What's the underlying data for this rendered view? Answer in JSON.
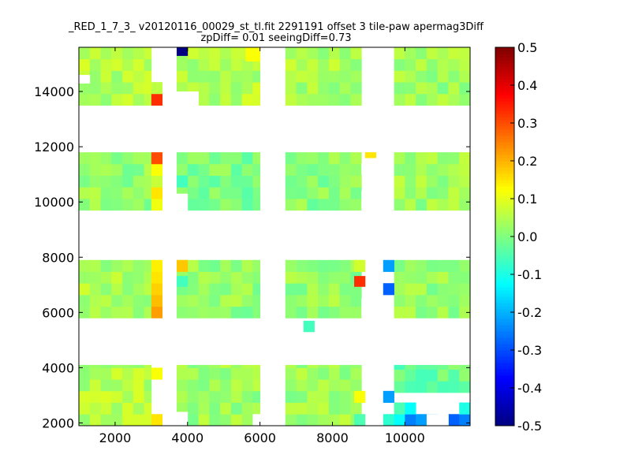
{
  "chart_data": {
    "type": "heatmap",
    "title": "_RED_1_7_3_ v20120116_00029_st_tl.fit 2291191 offset 3 tile-paw apermag3Diff",
    "subtitle": "zpDiff= 0.01 seeingDiff=0.73",
    "xlabel": "",
    "ylabel": "",
    "xlim": [
      1000,
      11800
    ],
    "ylim": [
      1900,
      15600
    ],
    "x_ticks": [
      2000,
      4000,
      6000,
      8000,
      10000
    ],
    "y_ticks": [
      2000,
      4000,
      6000,
      8000,
      10000,
      12000,
      14000
    ],
    "colorbar": {
      "colormap": "jet",
      "range": [
        -0.5,
        0.5
      ],
      "ticks": [
        "-0.5",
        "-0.4",
        "-0.3",
        "-0.2",
        "-0.1",
        "0.0",
        "0.1",
        "0.2",
        "0.3",
        "0.4",
        "0.5"
      ]
    },
    "cell_size": [
      300,
      420
    ],
    "blocks": [
      {
        "x": [
          1000,
          3000
        ],
        "y": [
          1900,
          4100
        ],
        "base": 0.05
      },
      {
        "x": [
          1000,
          3000
        ],
        "y": [
          5800,
          7900
        ],
        "base": 0.04
      },
      {
        "x": [
          1000,
          3000
        ],
        "y": [
          9700,
          11800
        ],
        "base": 0.02
      },
      {
        "x": [
          1000,
          3000
        ],
        "y": [
          13500,
          15600
        ],
        "base": 0.05
      },
      {
        "x": [
          3700,
          6000
        ],
        "y": [
          1900,
          4100
        ],
        "base": 0.03
      },
      {
        "x": [
          3700,
          6000
        ],
        "y": [
          5800,
          7900
        ],
        "base": 0.02
      },
      {
        "x": [
          3700,
          6000
        ],
        "y": [
          9700,
          11800
        ],
        "base": 0.0
      },
      {
        "x": [
          3700,
          6000
        ],
        "y": [
          13500,
          15600
        ],
        "base": 0.05
      },
      {
        "x": [
          6700,
          8800
        ],
        "y": [
          1900,
          4100
        ],
        "base": 0.03
      },
      {
        "x": [
          6700,
          8800
        ],
        "y": [
          5800,
          7900
        ],
        "base": 0.02
      },
      {
        "x": [
          6700,
          8800
        ],
        "y": [
          9700,
          11800
        ],
        "base": 0.01
      },
      {
        "x": [
          6700,
          8800
        ],
        "y": [
          13500,
          15600
        ],
        "base": 0.04
      },
      {
        "x": [
          9700,
          11800
        ],
        "y": [
          3100,
          4100
        ],
        "base": -0.02
      },
      {
        "x": [
          9700,
          11800
        ],
        "y": [
          5800,
          7900
        ],
        "base": 0.02
      },
      {
        "x": [
          9700,
          11800
        ],
        "y": [
          9700,
          11800
        ],
        "base": 0.03
      },
      {
        "x": [
          9700,
          11800
        ],
        "y": [
          13500,
          15600
        ],
        "base": 0.03
      }
    ],
    "column_cells": [
      {
        "x": [
          3000,
          3300
        ],
        "y": [
          1900,
          2320
        ],
        "value": 0.15
      },
      {
        "x": [
          3000,
          3300
        ],
        "y": [
          3580,
          4000
        ],
        "value": 0.12
      },
      {
        "x": [
          3000,
          3300
        ],
        "y": [
          5800,
          6220
        ],
        "value": 0.22
      },
      {
        "x": [
          3000,
          3300
        ],
        "y": [
          6220,
          6640
        ],
        "value": 0.19
      },
      {
        "x": [
          3000,
          3300
        ],
        "y": [
          6640,
          7060
        ],
        "value": 0.17
      },
      {
        "x": [
          3000,
          3300
        ],
        "y": [
          7060,
          7480
        ],
        "value": 0.15
      },
      {
        "x": [
          3000,
          3300
        ],
        "y": [
          7480,
          7900
        ],
        "value": 0.14
      },
      {
        "x": [
          3000,
          3300
        ],
        "y": [
          9700,
          10120
        ],
        "value": 0.11
      },
      {
        "x": [
          3000,
          3300
        ],
        "y": [
          10120,
          10540
        ],
        "value": 0.15
      },
      {
        "x": [
          3000,
          3300
        ],
        "y": [
          10540,
          10960
        ],
        "value": 0.07
      },
      {
        "x": [
          3000,
          3300
        ],
        "y": [
          10960,
          11380
        ],
        "value": 0.12
      },
      {
        "x": [
          3000,
          3300
        ],
        "y": [
          11380,
          11800
        ],
        "value": 0.3
      },
      {
        "x": [
          3000,
          3300
        ],
        "y": [
          13500,
          13920
        ],
        "value": 0.33
      },
      {
        "x": [
          3000,
          3300
        ],
        "y": [
          13920,
          14340
        ],
        "value": 0.06
      },
      {
        "x": [
          9400,
          9700
        ],
        "y": [
          1900,
          2320
        ],
        "value": -0.08
      },
      {
        "x": [
          9400,
          9700
        ],
        "y": [
          2740,
          3160
        ],
        "value": -0.22
      },
      {
        "x": [
          9400,
          9700
        ],
        "y": [
          6640,
          7060
        ],
        "value": -0.28
      },
      {
        "x": [
          9400,
          9700
        ],
        "y": [
          7480,
          7900
        ],
        "value": -0.22
      }
    ],
    "special_cells": [
      {
        "x": [
          3700,
          4000
        ],
        "y": [
          15300,
          15600
        ],
        "value": -0.5
      },
      {
        "x": [
          3700,
          4000
        ],
        "y": [
          7480,
          7900
        ],
        "value": 0.18
      },
      {
        "x": [
          3700,
          4000
        ],
        "y": [
          6940,
          7320
        ],
        "value": -0.06
      },
      {
        "x": [
          3700,
          4000
        ],
        "y": [
          10540,
          10960
        ],
        "value": -0.06
      },
      {
        "x": [
          5600,
          6000
        ],
        "y": [
          15100,
          15600
        ],
        "value": 0.12
      },
      {
        "x": [
          8600,
          8900
        ],
        "y": [
          6940,
          7320
        ],
        "value": 0.33
      },
      {
        "x": [
          8600,
          8900
        ],
        "y": [
          7480,
          7900
        ],
        "value": 0.08
      },
      {
        "x": [
          8900,
          9200
        ],
        "y": [
          11600,
          11800
        ],
        "value": 0.15
      },
      {
        "x": [
          8600,
          8900
        ],
        "y": [
          2740,
          3160
        ],
        "value": 0.12
      },
      {
        "x": [
          8600,
          8900
        ],
        "y": [
          1900,
          2320
        ],
        "value": -0.05
      },
      {
        "x": [
          7200,
          7500
        ],
        "y": [
          5300,
          5700
        ],
        "value": -0.06
      },
      {
        "x": [
          9700,
          10000
        ],
        "y": [
          1900,
          2320
        ],
        "value": -0.12
      },
      {
        "x": [
          10000,
          10300
        ],
        "y": [
          1900,
          2320
        ],
        "value": -0.25
      },
      {
        "x": [
          10300,
          10600
        ],
        "y": [
          1900,
          2320
        ],
        "value": -0.22
      },
      {
        "x": [
          10600,
          10900
        ],
        "y": [
          1900,
          2320
        ],
        "value": -0.2
      },
      {
        "x": [
          11200,
          11500
        ],
        "y": [
          1900,
          2320
        ],
        "value": -0.28
      },
      {
        "x": [
          11500,
          11800
        ],
        "y": [
          1900,
          2320
        ],
        "value": -0.25
      },
      {
        "x": [
          11500,
          11800
        ],
        "y": [
          2320,
          2740
        ],
        "value": -0.1
      },
      {
        "x": [
          9700,
          10000
        ],
        "y": [
          2320,
          2740
        ],
        "value": -0.05
      },
      {
        "x": [
          10000,
          10300
        ],
        "y": [
          2320,
          2740
        ],
        "value": -0.12
      }
    ],
    "white_gaps": [
      {
        "x": [
          5800,
          6600
        ],
        "y": [
          1900,
          2320
        ]
      },
      {
        "x": [
          10600,
          11200
        ],
        "y": [
          1900,
          2320
        ]
      },
      {
        "x": [
          3700,
          4000
        ],
        "y": [
          1900,
          2400
        ]
      },
      {
        "x": [
          1000,
          1300
        ],
        "y": [
          14300,
          14600
        ]
      },
      {
        "x": [
          3700,
          4300
        ],
        "y": [
          13500,
          14000
        ]
      },
      {
        "x": [
          8800,
          9200
        ],
        "y": [
          11000,
          11400
        ]
      },
      {
        "x": [
          8800,
          9200
        ],
        "y": [
          9700,
          10400
        ]
      },
      {
        "x": [
          3700,
          4000
        ],
        "y": [
          9700,
          10300
        ]
      },
      {
        "x": [
          8800,
          9200
        ],
        "y": [
          5800,
          6500
        ]
      }
    ]
  }
}
